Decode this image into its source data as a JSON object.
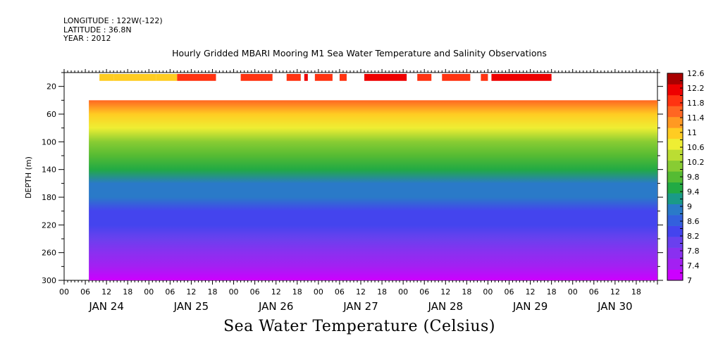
{
  "header": {
    "longitude": "LONGITUDE : 122W(-122)",
    "latitude": "LATITUDE : 36.8N",
    "year": "YEAR : 2012"
  },
  "colors": {
    "palette": [
      "#cc00ff",
      "#a320f2",
      "#8a30f0",
      "#6a40ee",
      "#4444ee",
      "#3360dd",
      "#2a7ac8",
      "#1a9a88",
      "#22aa44",
      "#55bb33",
      "#88cc33",
      "#bbdd33",
      "#eeee33",
      "#ffcc22",
      "#ff9922",
      "#ff6622",
      "#ff3311",
      "#ee0000",
      "#aa0000"
    ]
  },
  "chart_data": {
    "type": "heatmap",
    "title": "Hourly Gridded MBARI Mooring M1 Sea Water Temperature and Salinity Observations",
    "xlabel": "Sea Water Temperature (Celsius)",
    "ylabel": "DEPTH (m)",
    "ylim": [
      300,
      0
    ],
    "yticks": [
      "20",
      "60",
      "100",
      "140",
      "180",
      "220",
      "260",
      "300"
    ],
    "xlim_hours": [
      0,
      168
    ],
    "hour_tick_labels": [
      "00",
      "06",
      "12",
      "18",
      "00",
      "06",
      "12",
      "18",
      "00",
      "06",
      "12",
      "18",
      "00",
      "06",
      "12",
      "18",
      "00",
      "06",
      "12",
      "18",
      "00",
      "06",
      "12",
      "18",
      "00",
      "06",
      "12",
      "18"
    ],
    "date_labels": [
      "JAN 24",
      "JAN 25",
      "JAN 26",
      "JAN 27",
      "JAN 28",
      "JAN 29",
      "JAN 30"
    ],
    "colorbar": {
      "levels": [
        7,
        7.2,
        7.4,
        7.6,
        7.8,
        8,
        8.2,
        8.4,
        8.6,
        8.8,
        9,
        9.2,
        9.4,
        9.6,
        9.8,
        10,
        10.2,
        10.4,
        10.6,
        10.8,
        11,
        11.2,
        11.4,
        11.6,
        11.8,
        12,
        12.2,
        12.4,
        12.6
      ],
      "labels": [
        "7",
        "7.4",
        "7.8",
        "8.2",
        "8.6",
        "9",
        "9.4",
        "9.8",
        "10.2",
        "10.6",
        "11",
        "11.4",
        "11.8",
        "12.2",
        "12.6"
      ]
    },
    "data_start_hour": 7,
    "data_top_depth": 40,
    "depth_profile": [
      {
        "depth": 40,
        "temp": 11.7
      },
      {
        "depth": 60,
        "temp": 11.2
      },
      {
        "depth": 80,
        "temp": 10.7
      },
      {
        "depth": 100,
        "temp": 10.3
      },
      {
        "depth": 120,
        "temp": 9.9
      },
      {
        "depth": 140,
        "temp": 9.4
      },
      {
        "depth": 160,
        "temp": 9.1
      },
      {
        "depth": 180,
        "temp": 8.9
      },
      {
        "depth": 200,
        "temp": 8.6
      },
      {
        "depth": 220,
        "temp": 8.3
      },
      {
        "depth": 240,
        "temp": 8.1
      },
      {
        "depth": 260,
        "temp": 7.8
      },
      {
        "depth": 280,
        "temp": 7.5
      },
      {
        "depth": 300,
        "temp": 7.2
      }
    ],
    "surface_segments_10m": [
      {
        "start": 10,
        "end": 14,
        "temp": 11.1
      },
      {
        "start": 14,
        "end": 26,
        "temp": 11.0
      },
      {
        "start": 26,
        "end": 32,
        "temp": 11.2
      },
      {
        "start": 32,
        "end": 43,
        "temp": 11.8
      },
      {
        "start": 50,
        "end": 59,
        "temp": 12.1
      },
      {
        "start": 63,
        "end": 67,
        "temp": 12.1
      },
      {
        "start": 68,
        "end": 69,
        "temp": 12.2
      },
      {
        "start": 71,
        "end": 76,
        "temp": 12.1
      },
      {
        "start": 78,
        "end": 80,
        "temp": 12.0
      },
      {
        "start": 85,
        "end": 97,
        "temp": 12.3
      },
      {
        "start": 100,
        "end": 104,
        "temp": 12.1
      },
      {
        "start": 107,
        "end": 115,
        "temp": 12.1
      },
      {
        "start": 118,
        "end": 120,
        "temp": 12.0
      },
      {
        "start": 121,
        "end": 138,
        "temp": 12.2
      }
    ]
  }
}
